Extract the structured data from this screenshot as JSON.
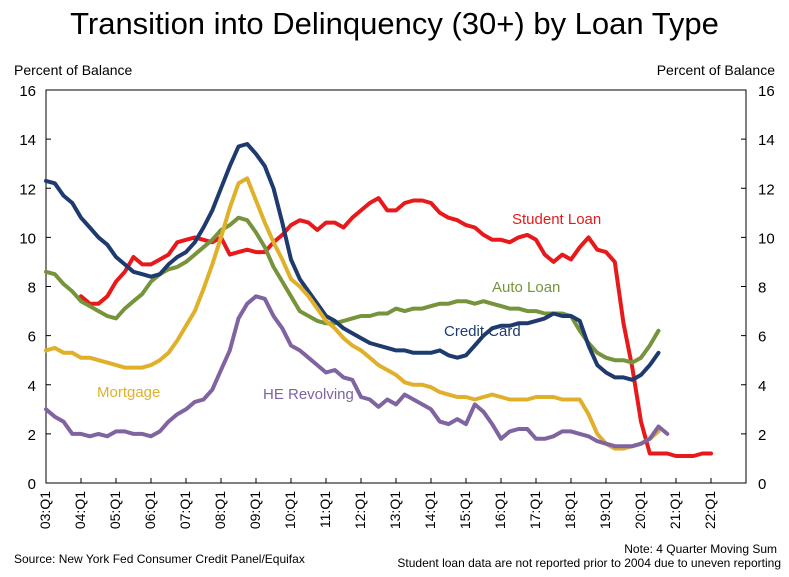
{
  "title": "Transition into Delinquency (30+) by Loan Type",
  "source": "Source: New York Fed Consumer Credit Panel/Equifax",
  "note_line1": "Note: 4 Quarter Moving Sum",
  "note_line2": "Student loan data are not reported prior to 2004 due to uneven reporting",
  "chart_data": {
    "type": "line",
    "title": "Transition into Delinquency (30+) by Loan Type",
    "ylabel": "Percent of Balance",
    "ylabel_right": "Percent of Balance",
    "ylim": [
      0,
      16
    ],
    "yticks": [
      0,
      2,
      4,
      6,
      8,
      10,
      12,
      14,
      16
    ],
    "x_ticks": [
      "03:Q1",
      "04:Q1",
      "05:Q1",
      "06:Q1",
      "07:Q1",
      "08:Q1",
      "09:Q1",
      "10:Q1",
      "11:Q1",
      "12:Q1",
      "13:Q1",
      "14:Q1",
      "15:Q1",
      "16:Q1",
      "17:Q1",
      "18:Q1",
      "19:Q1",
      "20:Q1",
      "21:Q1",
      "22:Q1"
    ],
    "x_start": "2003:Q1",
    "x_end": "2022:Q4",
    "grid": false,
    "legend": "inline labels",
    "series": [
      {
        "name": "Student Loan",
        "color": "#e8191b",
        "start": "2004:Q1",
        "values": [
          7.6,
          7.3,
          7.3,
          7.6,
          8.2,
          8.6,
          9.2,
          8.9,
          8.9,
          9.1,
          9.3,
          9.8,
          9.9,
          10.0,
          9.9,
          9.8,
          10.0,
          9.3,
          9.4,
          9.5,
          9.4,
          9.4,
          9.8,
          10.1,
          10.5,
          10.7,
          10.6,
          10.3,
          10.6,
          10.6,
          10.4,
          10.8,
          11.1,
          11.4,
          11.6,
          11.1,
          11.1,
          11.4,
          11.5,
          11.5,
          11.4,
          11.0,
          10.8,
          10.7,
          10.5,
          10.4,
          10.1,
          9.9,
          9.9,
          9.8,
          10.0,
          10.1,
          9.9,
          9.3,
          9.0,
          9.3,
          9.1,
          9.6,
          10.0,
          9.5,
          9.4,
          9.0,
          6.5,
          4.7,
          2.5,
          1.2,
          1.2,
          1.2,
          1.1,
          1.1,
          1.1,
          1.2,
          1.2
        ]
      },
      {
        "name": "Auto Loan",
        "color": "#77933c",
        "values": [
          8.6,
          8.5,
          8.1,
          7.8,
          7.4,
          7.2,
          7.0,
          6.8,
          6.7,
          7.1,
          7.4,
          7.7,
          8.2,
          8.5,
          8.7,
          8.8,
          9.0,
          9.3,
          9.6,
          9.9,
          10.3,
          10.5,
          10.8,
          10.7,
          10.2,
          9.6,
          8.8,
          8.2,
          7.6,
          7.0,
          6.8,
          6.6,
          6.5,
          6.5,
          6.6,
          6.7,
          6.8,
          6.8,
          6.9,
          6.9,
          7.1,
          7.0,
          7.1,
          7.1,
          7.2,
          7.3,
          7.3,
          7.4,
          7.4,
          7.3,
          7.4,
          7.3,
          7.2,
          7.1,
          7.1,
          7.0,
          7.0,
          6.9,
          6.9,
          6.9,
          6.8,
          6.2,
          5.7,
          5.3,
          5.1,
          5.0,
          5.0,
          4.9,
          5.1,
          5.6,
          6.2
        ]
      },
      {
        "name": "Credit Card",
        "color": "#1f3a6e",
        "values": [
          12.3,
          12.2,
          11.7,
          11.4,
          10.8,
          10.4,
          10.0,
          9.7,
          9.2,
          8.9,
          8.6,
          8.5,
          8.4,
          8.5,
          8.9,
          9.2,
          9.4,
          9.8,
          10.4,
          11.1,
          12.0,
          12.9,
          13.7,
          13.8,
          13.4,
          12.9,
          12.0,
          10.6,
          9.1,
          8.3,
          7.8,
          7.3,
          6.8,
          6.6,
          6.3,
          6.1,
          5.9,
          5.7,
          5.6,
          5.5,
          5.4,
          5.4,
          5.3,
          5.3,
          5.3,
          5.4,
          5.2,
          5.1,
          5.2,
          5.6,
          6.0,
          6.3,
          6.4,
          6.4,
          6.5,
          6.5,
          6.6,
          6.7,
          6.9,
          6.8,
          6.8,
          6.6,
          5.6,
          4.8,
          4.5,
          4.3,
          4.3,
          4.2,
          4.4,
          4.8,
          5.3
        ]
      },
      {
        "name": "Mortgage",
        "color": "#e0b02b",
        "values": [
          5.4,
          5.5,
          5.3,
          5.3,
          5.1,
          5.1,
          5.0,
          4.9,
          4.8,
          4.7,
          4.7,
          4.7,
          4.8,
          5.0,
          5.3,
          5.8,
          6.4,
          7.0,
          7.9,
          8.9,
          10.0,
          11.2,
          12.2,
          12.4,
          11.5,
          10.6,
          9.8,
          9.1,
          8.3,
          8.0,
          7.6,
          7.1,
          6.6,
          6.3,
          5.9,
          5.6,
          5.4,
          5.1,
          4.8,
          4.6,
          4.4,
          4.1,
          4.0,
          4.0,
          3.9,
          3.7,
          3.6,
          3.5,
          3.5,
          3.4,
          3.5,
          3.6,
          3.5,
          3.4,
          3.4,
          3.4,
          3.5,
          3.5,
          3.5,
          3.4,
          3.4,
          3.4,
          2.8,
          2.0,
          1.6,
          1.4,
          1.4,
          1.5,
          1.6,
          1.8,
          2.1
        ]
      },
      {
        "name": "HE Revolving",
        "color": "#8063a1",
        "values": [
          3.0,
          2.7,
          2.5,
          2.0,
          2.0,
          1.9,
          2.0,
          1.9,
          2.1,
          2.1,
          2.0,
          2.0,
          1.9,
          2.1,
          2.5,
          2.8,
          3.0,
          3.3,
          3.4,
          3.8,
          4.6,
          5.4,
          6.7,
          7.3,
          7.6,
          7.5,
          6.8,
          6.3,
          5.6,
          5.4,
          5.1,
          4.8,
          4.5,
          4.6,
          4.3,
          4.2,
          3.5,
          3.4,
          3.1,
          3.4,
          3.2,
          3.6,
          3.4,
          3.2,
          3.0,
          2.5,
          2.4,
          2.6,
          2.4,
          3.2,
          2.9,
          2.4,
          1.8,
          2.1,
          2.2,
          2.2,
          1.8,
          1.8,
          1.9,
          2.1,
          2.1,
          2.0,
          1.9,
          1.7,
          1.6,
          1.5,
          1.5,
          1.5,
          1.6,
          1.8,
          2.3,
          2.0
        ]
      }
    ],
    "annotations": [
      {
        "text": "Student Loan",
        "series": "Student Loan"
      },
      {
        "text": "Auto Loan",
        "series": "Auto Loan"
      },
      {
        "text": "Credit Card",
        "series": "Credit Card"
      },
      {
        "text": "Mortgage",
        "series": "Mortgage"
      },
      {
        "text": "HE Revolving",
        "series": "HE Revolving"
      }
    ]
  }
}
